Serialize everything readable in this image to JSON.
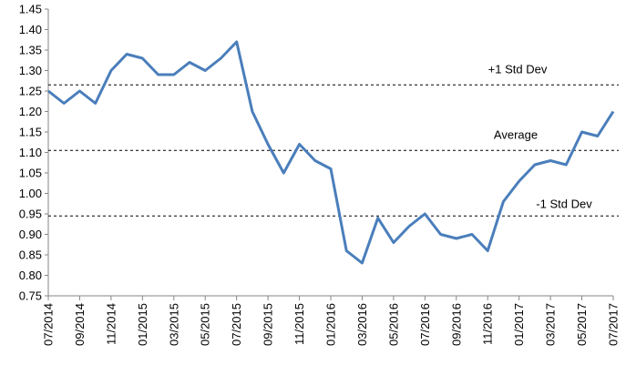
{
  "chart_data": {
    "type": "line",
    "x": [
      "07/2014",
      "08/2014",
      "09/2014",
      "10/2014",
      "11/2014",
      "12/2014",
      "01/2015",
      "02/2015",
      "03/2015",
      "04/2015",
      "05/2015",
      "06/2015",
      "07/2015",
      "08/2015",
      "09/2015",
      "10/2015",
      "11/2015",
      "12/2015",
      "01/2016",
      "02/2016",
      "03/2016",
      "04/2016",
      "05/2016",
      "06/2016",
      "07/2016",
      "08/2016",
      "09/2016",
      "10/2016",
      "11/2016",
      "12/2016",
      "01/2017",
      "02/2017",
      "03/2017",
      "04/2017",
      "05/2017",
      "06/2017",
      "07/2017"
    ],
    "values": [
      1.25,
      1.22,
      1.25,
      1.22,
      1.3,
      1.34,
      1.33,
      1.29,
      1.29,
      1.32,
      1.3,
      1.33,
      1.37,
      1.2,
      1.12,
      1.05,
      1.12,
      1.08,
      1.06,
      0.86,
      0.83,
      0.94,
      0.88,
      0.92,
      0.95,
      0.9,
      0.89,
      0.9,
      0.86,
      0.98,
      1.03,
      1.07,
      1.08,
      1.07,
      1.15,
      1.14,
      1.2
    ],
    "color": "#4a7ebb",
    "xticks": [
      "07/2014",
      "09/2014",
      "11/2014",
      "01/2015",
      "03/2015",
      "05/2015",
      "07/2015",
      "09/2015",
      "11/2015",
      "01/2016",
      "03/2016",
      "05/2016",
      "07/2016",
      "09/2016",
      "11/2016",
      "01/2017",
      "03/2017",
      "05/2017",
      "07/2017"
    ],
    "ylim": [
      0.75,
      1.45
    ],
    "yticks": [
      0.75,
      {
        "value": 0.8,
        "label": "0.80"
      },
      0.85,
      {
        "value": 0.9,
        "label": "0.90"
      },
      0.95,
      {
        "value": 1.0,
        "label": "1.00"
      },
      1.05,
      {
        "value": 1.1,
        "label": "1.10"
      },
      1.15,
      {
        "value": 1.2,
        "label": "1.20"
      },
      1.25,
      {
        "value": 1.3,
        "label": "1.30"
      },
      1.35,
      {
        "value": 1.4,
        "label": "1.40"
      },
      1.45
    ],
    "reference_lines": [
      {
        "label": "+1 Std Dev",
        "value": 1.265
      },
      {
        "label": "Average",
        "value": 1.105
      },
      {
        "label": "-1 Std Dev",
        "value": 0.945
      }
    ],
    "grid": false
  }
}
